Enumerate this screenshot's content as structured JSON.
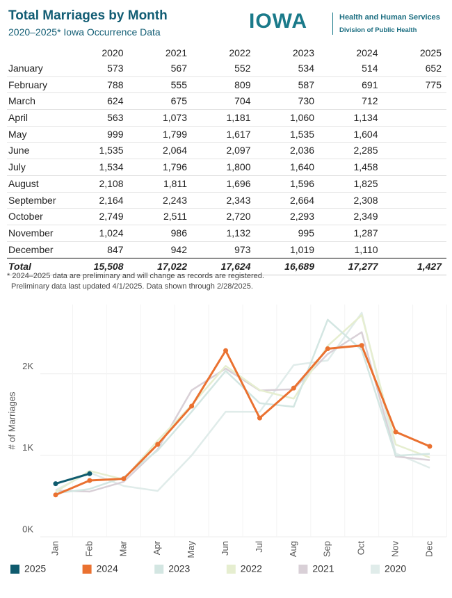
{
  "header": {
    "title": "Total Marriages by Month",
    "subtitle": "2020–2025* Iowa Occurrence Data",
    "logo": "IOWA",
    "org": "Health and Human Services",
    "division": "Division of Public Health"
  },
  "table": {
    "columns": [
      "2020",
      "2021",
      "2022",
      "2023",
      "2024",
      "2025"
    ],
    "rows": [
      [
        "January",
        "573",
        "567",
        "552",
        "534",
        "514",
        "652"
      ],
      [
        "February",
        "788",
        "555",
        "809",
        "587",
        "691",
        "775"
      ],
      [
        "March",
        "624",
        "675",
        "704",
        "730",
        "712"
      ],
      [
        "April",
        "563",
        "1,073",
        "1,181",
        "1,060",
        "1,134"
      ],
      [
        "May",
        "999",
        "1,799",
        "1,617",
        "1,535",
        "1,604"
      ],
      [
        "June",
        "1,535",
        "2,064",
        "2,097",
        "2,036",
        "2,285"
      ],
      [
        "July",
        "1,534",
        "1,796",
        "1,800",
        "1,640",
        "1,458"
      ],
      [
        "August",
        "2,108",
        "1,811",
        "1,696",
        "1,596",
        "1,825"
      ],
      [
        "September",
        "2,164",
        "2,243",
        "2,343",
        "2,664",
        "2,308"
      ],
      [
        "October",
        "2,749",
        "2,511",
        "2,720",
        "2,293",
        "2,349"
      ],
      [
        "November",
        "1,024",
        "986",
        "1,132",
        "995",
        "1,287"
      ],
      [
        "December",
        "847",
        "942",
        "973",
        "1,019",
        "1,110"
      ]
    ],
    "total": [
      "Total",
      "15,508",
      "17,022",
      "17,624",
      "16,689",
      "17,277",
      "1,427"
    ]
  },
  "notes": [
    "* 2024–2025 data are preliminary and will change as records are registered.",
    "Preliminary data last updated 4/1/2025. Data shown through 2/28/2025."
  ],
  "chart_data": {
    "type": "line",
    "ylabel": "# of Marriages",
    "categories": [
      "Jan",
      "Feb",
      "Mar",
      "Apr",
      "May",
      "Jun",
      "Jul",
      "Aug",
      "Sep",
      "Oct",
      "Nov",
      "Dec"
    ],
    "ylim": [
      0,
      2850
    ],
    "yticks": [
      {
        "value": 0,
        "label": "0K"
      },
      {
        "value": 1000,
        "label": "1K"
      },
      {
        "value": 2000,
        "label": "2K"
      }
    ],
    "grid": true,
    "series": [
      {
        "name": "2025",
        "color": "#0f5b6e",
        "markers": true,
        "values": [
          652,
          775,
          null,
          null,
          null,
          null,
          null,
          null,
          null,
          null,
          null,
          null
        ]
      },
      {
        "name": "2024",
        "color": "#ea7130",
        "markers": true,
        "values": [
          514,
          691,
          712,
          1134,
          1604,
          2285,
          1458,
          1825,
          2308,
          2349,
          1287,
          1110
        ]
      },
      {
        "name": "2023",
        "color": "#d3e6e2",
        "values": [
          534,
          587,
          730,
          1060,
          1535,
          2036,
          1640,
          1596,
          2664,
          2293,
          995,
          1019
        ]
      },
      {
        "name": "2022",
        "color": "#e6eed0",
        "values": [
          552,
          809,
          704,
          1181,
          1617,
          2097,
          1800,
          1696,
          2343,
          2720,
          1132,
          973
        ]
      },
      {
        "name": "2021",
        "color": "#d9d0d7",
        "values": [
          567,
          555,
          675,
          1073,
          1799,
          2064,
          1796,
          1811,
          2243,
          2511,
          986,
          942
        ]
      },
      {
        "name": "2020",
        "color": "#e0ecea",
        "values": [
          573,
          788,
          624,
          563,
          999,
          1535,
          1534,
          2108,
          2164,
          2749,
          1024,
          847
        ]
      }
    ]
  }
}
